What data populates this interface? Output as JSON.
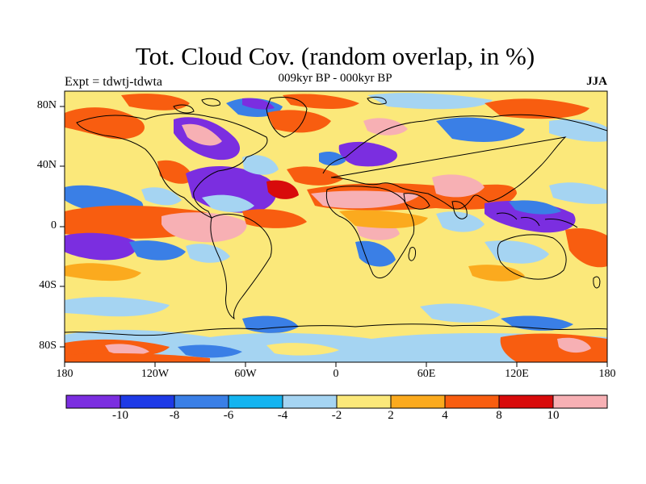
{
  "title": "Tot. Cloud Cov. (random overlap, in %)",
  "subtitle_left": "Expt = tdwtj-tdwta",
  "subtitle_center": "009kyr BP - 000kyr BP",
  "subtitle_right": "JJA",
  "lat_labels": [
    "80N",
    "40N",
    "0",
    "40S",
    "80S"
  ],
  "lon_labels": [
    "180",
    "120W",
    "60W",
    "0",
    "60E",
    "120E",
    "180"
  ],
  "colorbar": {
    "colors": [
      "#7b2ee0",
      "#1e3ae6",
      "#3a7fe6",
      "#14b4f0",
      "#a5d4f2",
      "#fbe87a",
      "#fbaa1e",
      "#f85d10",
      "#d80b0b",
      "#f7b0b4"
    ],
    "labels": [
      "-10",
      "-8",
      "-6",
      "-4",
      "-2",
      "2",
      "4",
      "8",
      "10"
    ]
  },
  "colors": {
    "background": "#fbe87a",
    "coast": "#000000"
  }
}
